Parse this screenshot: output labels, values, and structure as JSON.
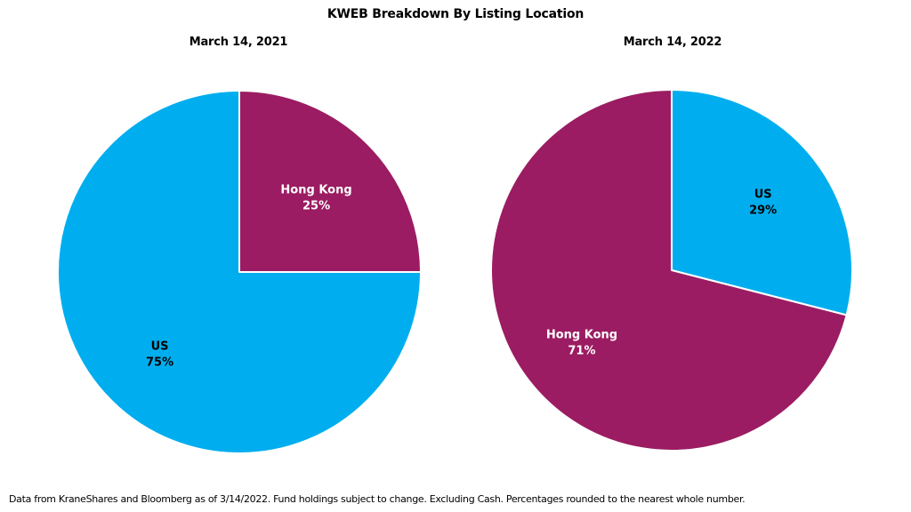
{
  "title": "KWEB Breakdown By Listing Location",
  "footnote": "Data from KraneShares and Bloomberg as of 3/14/2022. Fund holdings subject to change. Excluding Cash. Percentages rounded to the nearest whole number.",
  "colors": {
    "us": "#00AEEF",
    "hong_kong": "#9B1C62",
    "label_light": "#ffffff",
    "label_dark": "#000000"
  },
  "chart_data": [
    {
      "type": "pie",
      "title": "March 14, 2021",
      "slices": [
        {
          "label": "Hong Kong",
          "value": 25,
          "display": "25%",
          "color": "#9B1C62",
          "label_color": "#ffffff"
        },
        {
          "label": "US",
          "value": 75,
          "display": "75%",
          "color": "#00AEEF",
          "label_color": "#000000"
        }
      ]
    },
    {
      "type": "pie",
      "title": "March 14, 2022",
      "slices": [
        {
          "label": "US",
          "value": 29,
          "display": "29%",
          "color": "#00AEEF",
          "label_color": "#000000"
        },
        {
          "label": "Hong Kong",
          "value": 71,
          "display": "71%",
          "color": "#9B1C62",
          "label_color": "#ffffff"
        }
      ]
    }
  ]
}
